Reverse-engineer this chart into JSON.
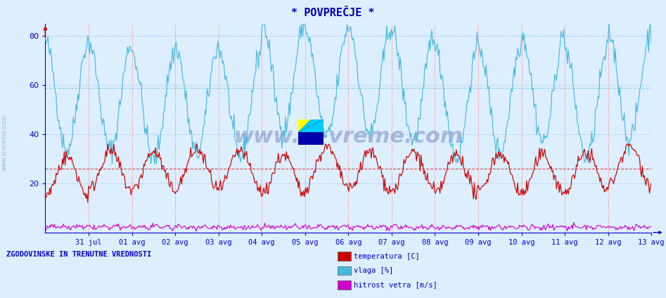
{
  "title": "* POVPREČJE *",
  "title_color": "#0000bb",
  "bg_color": "#ddeeff",
  "plot_bg_color": "#ddeeff",
  "ylim": [
    0,
    85
  ],
  "yticks": [
    20,
    40,
    60,
    80
  ],
  "xticklabels": [
    "31 jul",
    "01 avg",
    "02 avg",
    "03 avg",
    "04 avg",
    "05 avg",
    "06 avg",
    "07 avg",
    "08 avg",
    "09 avg",
    "10 avg",
    "11 avg",
    "12 avg",
    "13 avg"
  ],
  "temp_color": "#cc0000",
  "vlaga_color": "#44bbdd",
  "veter_color": "#cc00cc",
  "temp_avg": 26.0,
  "vlaga_avg": 59.0,
  "legend_texts": [
    "temperatura [C]",
    "vlaga [%]",
    "hitrost vetra [m/s]"
  ],
  "bottom_label": "ZGODOVINSKE IN TRENUTNE VREDNOSTI",
  "watermark": "www.si-vreme.com",
  "axis_color": "#0000cc",
  "grid_color_v": "#ff9999",
  "grid_color_h": "#aaccee",
  "num_points": 672,
  "figsize": [
    9.47,
    4.24
  ],
  "dpi": 100
}
